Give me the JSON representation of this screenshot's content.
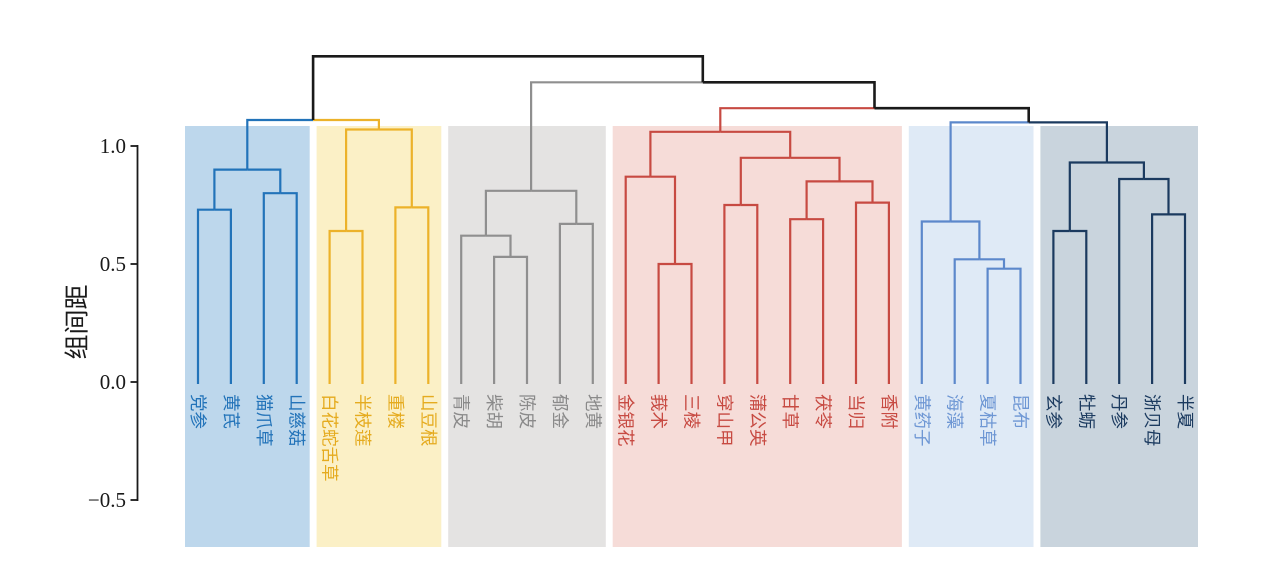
{
  "figure": {
    "ylabel": "组间距",
    "yticks": [
      {
        "label": "1.0",
        "value": 1.0
      },
      {
        "label": "0.5",
        "value": 0.5
      },
      {
        "label": "0.0",
        "value": 0.0
      },
      {
        "label": "−0.5",
        "value": -0.5
      }
    ]
  },
  "chart_data": {
    "type": "dendrogram",
    "title": "",
    "ylabel": "组间距",
    "ylim": [
      -0.5,
      1.0
    ],
    "grid": false,
    "leaves_end_at_value": 0.0,
    "above_threshold_color": "#1a1a1a",
    "axis_color": "#1a1a1a",
    "clusters": [
      {
        "name": "cluster-blue",
        "line_color": "#2273b9",
        "bg_color": "#bdd7ec",
        "label_color": "#2273b9",
        "leaves": [
          "党参",
          "黄芪",
          "猫爪草",
          "山慈菇"
        ]
      },
      {
        "name": "cluster-gold",
        "line_color": "#ecb22a",
        "bg_color": "#fbf0c6",
        "label_color": "#e5ab1f",
        "leaves": [
          "白花蛇舌草",
          "半枝莲",
          "重楼",
          "山豆根"
        ]
      },
      {
        "name": "cluster-gray",
        "line_color": "#8f8f8f",
        "bg_color": "#e4e3e2",
        "label_color": "#8a8a8a",
        "leaves": [
          "青皮",
          "柴胡",
          "陈皮",
          "郁金",
          "地黄"
        ]
      },
      {
        "name": "cluster-red",
        "line_color": "#c74a42",
        "bg_color": "#f6dcd8",
        "label_color": "#c74a42",
        "leaves": [
          "金银花",
          "莪术",
          "三棱",
          "穿山甲",
          "蒲公英",
          "甘草",
          "茯苓",
          "当归",
          "香附"
        ]
      },
      {
        "name": "cluster-lightblue",
        "line_color": "#5c88cb",
        "bg_color": "#dfeaf6",
        "label_color": "#6e97d4",
        "leaves": [
          "黄药子",
          "海藻",
          "夏枯草",
          "昆布"
        ]
      },
      {
        "name": "cluster-navy",
        "line_color": "#1b3a5f",
        "bg_color": "#c9d4dd",
        "label_color": "#1b3a5f",
        "leaves": [
          "玄参",
          "牡蛎",
          "丹参",
          "浙贝母",
          "半夏"
        ]
      }
    ],
    "merges": {
      "h": 1.38,
      "c": [
        {
          "h": 1.11,
          "c": [
            {
              "h": 0.9,
              "c": [
                {
                  "h": 0.73,
                  "c": [
                    0,
                    1
                  ]
                },
                {
                  "h": 0.8,
                  "c": [
                    2,
                    3
                  ]
                }
              ]
            },
            {
              "h": 1.07,
              "c": [
                {
                  "h": 0.64,
                  "c": [
                    4,
                    5
                  ]
                },
                {
                  "h": 0.74,
                  "c": [
                    6,
                    7
                  ]
                }
              ]
            }
          ]
        },
        {
          "h": 1.27,
          "c": [
            {
              "h": 0.81,
              "c": [
                {
                  "h": 0.62,
                  "c": [
                    8,
                    {
                      "h": 0.53,
                      "c": [
                        9,
                        10
                      ]
                    }
                  ]
                },
                {
                  "h": 0.67,
                  "c": [
                    11,
                    12
                  ]
                }
              ]
            },
            {
              "h": 1.16,
              "c": [
                {
                  "h": 1.06,
                  "c": [
                    {
                      "h": 0.87,
                      "c": [
                        13,
                        {
                          "h": 0.5,
                          "c": [
                            14,
                            15
                          ]
                        }
                      ]
                    },
                    {
                      "h": 0.95,
                      "c": [
                        {
                          "h": 0.75,
                          "c": [
                            16,
                            17
                          ]
                        },
                        {
                          "h": 0.85,
                          "c": [
                            {
                              "h": 0.69,
                              "c": [
                                18,
                                19
                              ]
                            },
                            {
                              "h": 0.76,
                              "c": [
                                20,
                                21
                              ]
                            }
                          ]
                        }
                      ]
                    }
                  ]
                },
                {
                  "h": 1.1,
                  "c": [
                    {
                      "h": 0.68,
                      "c": [
                        22,
                        {
                          "h": 0.52,
                          "c": [
                            23,
                            {
                              "h": 0.48,
                              "c": [
                                24,
                                25
                              ]
                            }
                          ]
                        }
                      ]
                    },
                    {
                      "h": 0.93,
                      "c": [
                        {
                          "h": 0.64,
                          "c": [
                            26,
                            27
                          ]
                        },
                        {
                          "h": 0.86,
                          "c": [
                            28,
                            {
                              "h": 0.71,
                              "c": [
                                29,
                                30
                              ]
                            }
                          ]
                        }
                      ]
                    }
                  ]
                }
              ]
            }
          ]
        }
      ]
    }
  }
}
